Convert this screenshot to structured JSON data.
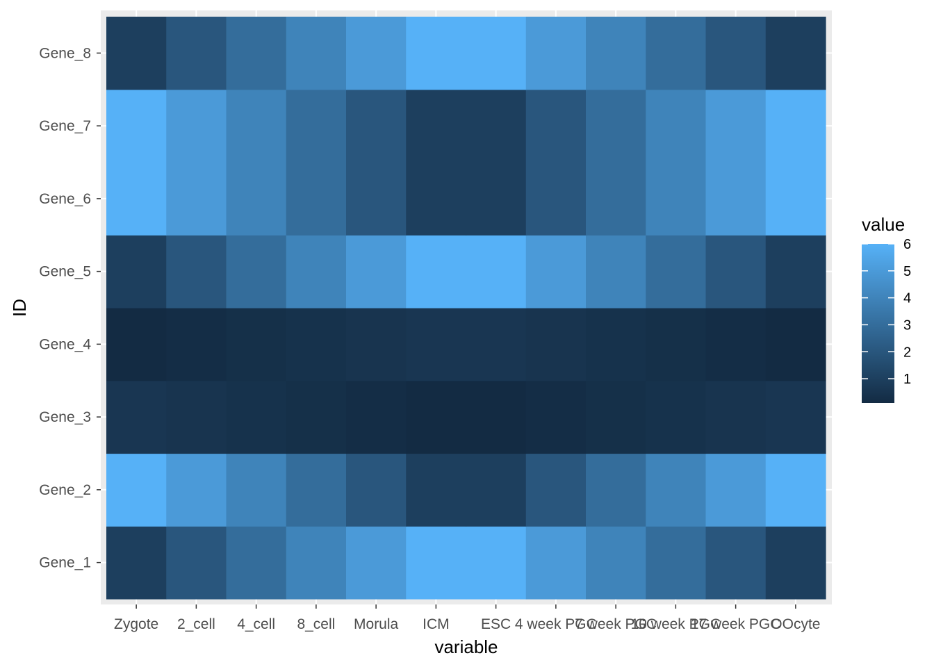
{
  "chart_data": {
    "type": "heatmap",
    "xlabel": "variable",
    "ylabel": "ID",
    "x_categories": [
      "Zygote",
      "2_cell",
      "4_cell",
      "8_cell",
      "Morula",
      "ICM",
      "ESC",
      "4 week PGC",
      "7 week PGC",
      "10 week PGC",
      "17 week PGC",
      "OOcyte"
    ],
    "y_categories": [
      "Gene_1",
      "Gene_2",
      "Gene_3",
      "Gene_4",
      "Gene_5",
      "Gene_6",
      "Gene_7",
      "Gene_8"
    ],
    "values": [
      [
        1.0,
        2.0,
        3.0,
        4.0,
        5.0,
        6.0,
        6.0,
        5.0,
        4.0,
        3.0,
        2.0,
        1.0
      ],
      [
        6.0,
        5.0,
        4.0,
        3.0,
        2.0,
        1.0,
        1.0,
        2.0,
        3.0,
        4.0,
        5.0,
        6.0
      ],
      [
        0.6,
        0.5,
        0.4,
        0.3,
        0.2,
        0.1,
        0.1,
        0.2,
        0.3,
        0.4,
        0.5,
        0.6
      ],
      [
        0.1,
        0.2,
        0.3,
        0.4,
        0.5,
        0.6,
        0.6,
        0.5,
        0.4,
        0.3,
        0.2,
        0.1
      ],
      [
        1.0,
        2.0,
        3.0,
        4.0,
        5.0,
        6.0,
        6.0,
        5.0,
        4.0,
        3.0,
        2.0,
        1.0
      ],
      [
        6.0,
        5.0,
        4.0,
        3.0,
        2.0,
        1.0,
        1.0,
        2.0,
        3.0,
        4.0,
        5.0,
        6.0
      ],
      [
        6.0,
        5.0,
        4.0,
        3.0,
        2.0,
        1.0,
        1.0,
        2.0,
        3.0,
        4.0,
        5.0,
        6.0
      ],
      [
        1.0,
        2.0,
        3.0,
        4.0,
        5.0,
        6.0,
        6.0,
        5.0,
        4.0,
        3.0,
        2.0,
        1.0
      ]
    ],
    "color_range": [
      0.1,
      6.0
    ],
    "low_color": "#132B43",
    "high_color": "#56B1F7",
    "panel_background": "#EBEBEB",
    "grid": true,
    "legend": {
      "title": "value",
      "breaks": [
        1,
        2,
        3,
        4,
        5,
        6
      ],
      "position": "right"
    }
  }
}
